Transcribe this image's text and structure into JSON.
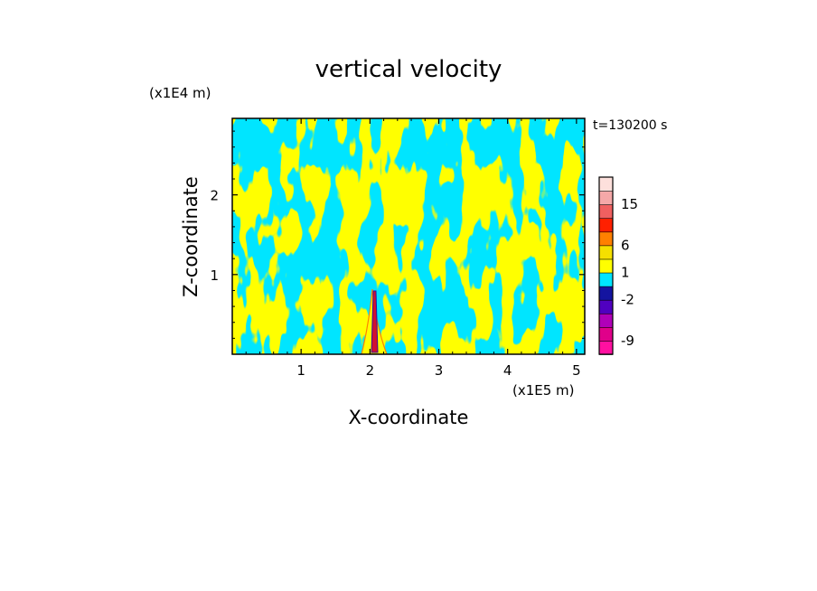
{
  "chart_data": {
    "type": "heatmap",
    "title": "vertical velocity",
    "time_label": "t=130200 s",
    "xlabel": "X-coordinate",
    "ylabel": "Z-coordinate",
    "x_unit": "(x1E5 m)",
    "y_unit": "(x1E4 m)",
    "xlim": [
      0,
      5.12
    ],
    "ylim": [
      0,
      2.96
    ],
    "x_ticks": [
      1,
      2,
      3,
      4,
      5
    ],
    "y_ticks": [
      1,
      2
    ],
    "x_tick_labels": [
      "1",
      "2",
      "3",
      "4",
      "5"
    ],
    "y_tick_labels": [
      "1",
      "2"
    ],
    "field_colors": {
      "positive": "#ffff00",
      "negative": "#00e5ff"
    },
    "colorbar": {
      "levels_colors": [
        "#ff10a0",
        "#e0008a",
        "#b000b8",
        "#5000c0",
        "#1414a0",
        "#00e5ff",
        "#ffff00",
        "#f5e000",
        "#ff8000",
        "#ff2000",
        "#f06060",
        "#f5a8a8",
        "#fde0dc"
      ],
      "labeled_values": [
        "-9",
        "-2",
        "1",
        "6",
        "15"
      ]
    },
    "updraft_core": {
      "x": 2.08,
      "z_top": 0.85,
      "color": "#d01030"
    }
  }
}
